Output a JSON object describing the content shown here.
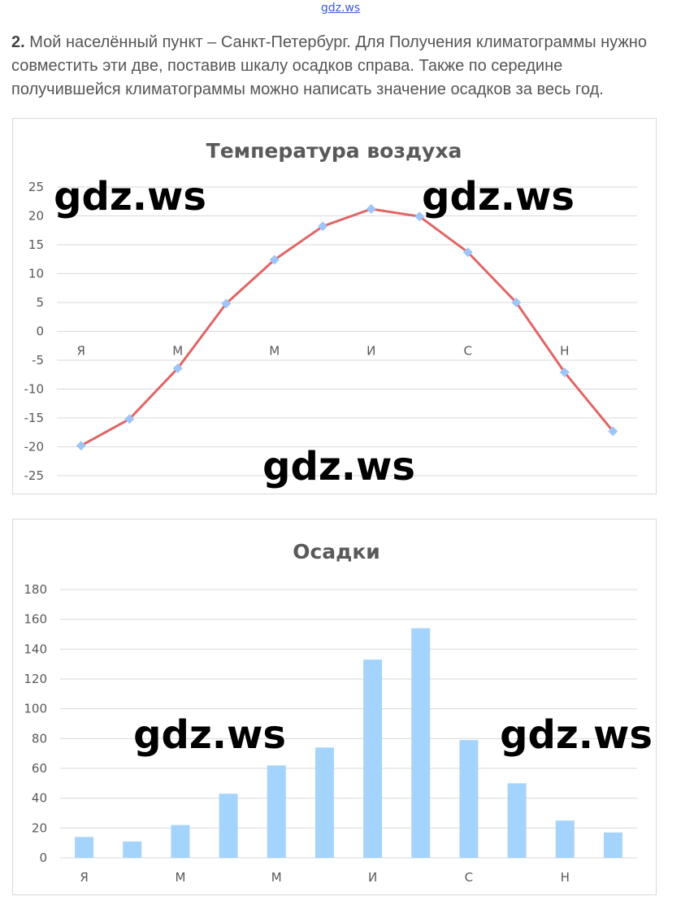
{
  "header": {
    "logo": "gdz.ws"
  },
  "task": {
    "number": "2.",
    "text": "Мой населённый пункт – Санкт-Петербург. Для Получения климатограммы нужно совместить эти две, поставив шкалу осадков справа. Также по середине получившейся климатограммы можно написать значение осадков за весь год."
  },
  "watermarks": [
    "gdz.ws",
    "gdz.ws",
    "gdz.ws",
    "gdz.ws",
    "gdz.ws"
  ],
  "colors": {
    "line": "#e06666",
    "marker": "#9fc5f8",
    "bar": "#a4d4fc"
  },
  "chart_data": [
    {
      "type": "line",
      "title": "Температура воздуха",
      "ylim": [
        -25,
        25
      ],
      "yticks": [
        25,
        20,
        15,
        10,
        5,
        0,
        -5,
        -10,
        -15,
        -20,
        -25
      ],
      "grid": true,
      "legend": "none",
      "category_labels": [
        "Я",
        "",
        "М",
        "",
        "М",
        "",
        "И",
        "",
        "С",
        "",
        "Н",
        ""
      ],
      "values": [
        -19.8,
        -15.2,
        -6.4,
        4.8,
        12.4,
        18.2,
        21.2,
        19.9,
        13.7,
        5.0,
        -7.1,
        -17.3
      ]
    },
    {
      "type": "bar",
      "title": "Осадки",
      "ylim": [
        0,
        180
      ],
      "yticks": [
        180,
        160,
        140,
        120,
        100,
        80,
        60,
        40,
        20,
        0
      ],
      "grid": true,
      "legend": "none",
      "category_labels": [
        "Я",
        "",
        "М",
        "",
        "М",
        "",
        "И",
        "",
        "С",
        "",
        "Н",
        ""
      ],
      "values": [
        14,
        11,
        22,
        43,
        62,
        74,
        133,
        154,
        79,
        50,
        25,
        17
      ]
    }
  ]
}
